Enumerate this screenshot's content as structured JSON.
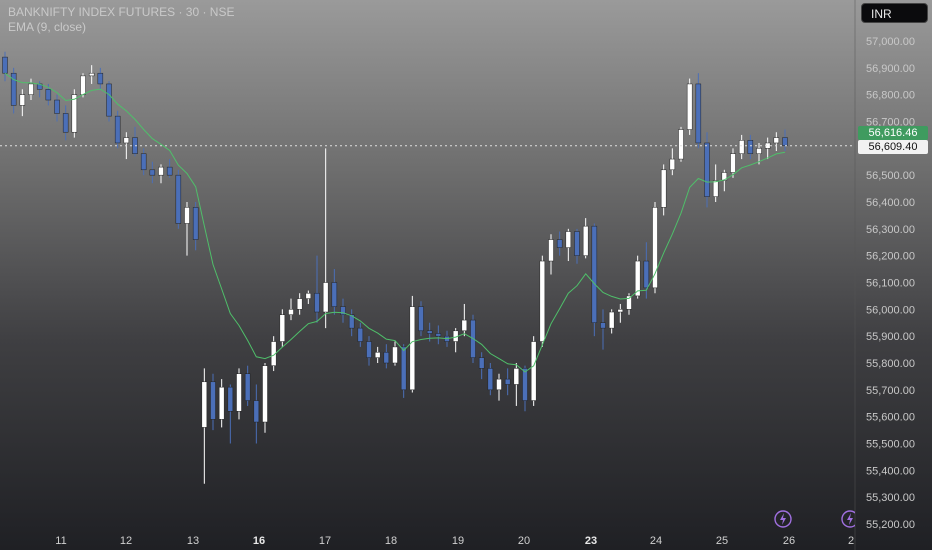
{
  "legend": {
    "symbol_line": "BANKNIFTY INDEX FUTURES · 30 · NSE",
    "indicator_line": "EMA (9, close)"
  },
  "currency_button": "INR",
  "price_tags": {
    "ema_value": "56,616.46",
    "last_price": "56,609.40"
  },
  "colors": {
    "ema_line": "#4fbf6a",
    "bull_candle": "#ffffff",
    "bear_candle": "#4b6fb8",
    "ema_tag_bg": "#3f9b5f"
  },
  "chart_data": {
    "type": "candlestick",
    "title": "BANKNIFTY INDEX FUTURES · 30 · NSE",
    "indicator": "EMA (9, close)",
    "y_ticks": [
      "57,000.00",
      "56,900.00",
      "56,800.00",
      "56,700.00",
      "56,600.00",
      "56,500.00",
      "56,400.00",
      "56,300.00",
      "56,200.00",
      "56,100.00",
      "56,000.00",
      "55,900.00",
      "55,800.00",
      "55,700.00",
      "55,600.00",
      "55,500.00",
      "55,400.00",
      "55,300.00",
      "55,200.00"
    ],
    "ylim": [
      55200,
      57000
    ],
    "x_ticks": [
      {
        "label": "11",
        "bold": false
      },
      {
        "label": "12",
        "bold": false
      },
      {
        "label": "13",
        "bold": false
      },
      {
        "label": "16",
        "bold": true
      },
      {
        "label": "17",
        "bold": false
      },
      {
        "label": "18",
        "bold": false
      },
      {
        "label": "19",
        "bold": false
      },
      {
        "label": "20",
        "bold": false
      },
      {
        "label": "23",
        "bold": true
      },
      {
        "label": "24",
        "bold": false
      },
      {
        "label": "25",
        "bold": false
      },
      {
        "label": "26",
        "bold": false
      },
      {
        "label": "2",
        "bold": false
      }
    ],
    "last_price": 56609.4,
    "ema_last": 56616.46,
    "candles": [
      [
        56940,
        56960,
        56850,
        56880
      ],
      [
        56880,
        56900,
        56730,
        56760
      ],
      [
        56760,
        56820,
        56720,
        56800
      ],
      [
        56800,
        56860,
        56780,
        56840
      ],
      [
        56840,
        56850,
        56790,
        56820
      ],
      [
        56820,
        56840,
        56760,
        56780
      ],
      [
        56780,
        56800,
        56700,
        56730
      ],
      [
        56730,
        56760,
        56630,
        56660
      ],
      [
        56660,
        56820,
        56640,
        56800
      ],
      [
        56800,
        56880,
        56790,
        56870
      ],
      [
        56870,
        56910,
        56840,
        56880
      ],
      [
        56880,
        56900,
        56820,
        56840
      ],
      [
        56840,
        56850,
        56700,
        56720
      ],
      [
        56720,
        56740,
        56600,
        56620
      ],
      [
        56620,
        56660,
        56560,
        56640
      ],
      [
        56640,
        56680,
        56570,
        56580
      ],
      [
        56580,
        56600,
        56500,
        56520
      ],
      [
        56520,
        56550,
        56470,
        56500
      ],
      [
        56500,
        56540,
        56470,
        56530
      ],
      [
        56530,
        56560,
        56490,
        56500
      ],
      [
        56500,
        56520,
        56300,
        56320
      ],
      [
        56320,
        56400,
        56200,
        56380
      ],
      [
        56380,
        56400,
        56220,
        56260
      ],
      [
        55560,
        55780,
        55350,
        55730
      ],
      [
        55730,
        55760,
        55550,
        55590
      ],
      [
        55590,
        55740,
        55560,
        55710
      ],
      [
        55710,
        55720,
        55500,
        55620
      ],
      [
        55620,
        55780,
        55590,
        55760
      ],
      [
        55760,
        55790,
        55640,
        55660
      ],
      [
        55660,
        55720,
        55500,
        55580
      ],
      [
        55580,
        55800,
        55540,
        55790
      ],
      [
        55790,
        55900,
        55770,
        55880
      ],
      [
        55880,
        56000,
        55860,
        55980
      ],
      [
        55980,
        56040,
        55960,
        56000
      ],
      [
        56000,
        56060,
        55980,
        56040
      ],
      [
        56040,
        56070,
        56020,
        56060
      ],
      [
        56060,
        56200,
        55950,
        55990
      ],
      [
        55990,
        56600,
        55930,
        56100
      ],
      [
        56100,
        56150,
        55980,
        56010
      ],
      [
        56010,
        56040,
        55950,
        55980
      ],
      [
        55980,
        56000,
        55900,
        55930
      ],
      [
        55930,
        55950,
        55860,
        55880
      ],
      [
        55880,
        55900,
        55790,
        55820
      ],
      [
        55820,
        55860,
        55800,
        55840
      ],
      [
        55840,
        55870,
        55780,
        55800
      ],
      [
        55800,
        55880,
        55790,
        55860
      ],
      [
        55860,
        55870,
        55670,
        55700
      ],
      [
        55700,
        56050,
        55690,
        56010
      ],
      [
        56010,
        56030,
        55900,
        55920
      ],
      [
        55920,
        55950,
        55880,
        55910
      ],
      [
        55910,
        55940,
        55870,
        55900
      ],
      [
        55900,
        55920,
        55860,
        55880
      ],
      [
        55880,
        55930,
        55840,
        55920
      ],
      [
        55920,
        56020,
        55900,
        55960
      ],
      [
        55960,
        55980,
        55800,
        55820
      ],
      [
        55820,
        55840,
        55740,
        55780
      ],
      [
        55780,
        55800,
        55680,
        55700
      ],
      [
        55700,
        55760,
        55660,
        55740
      ],
      [
        55740,
        55780,
        55680,
        55720
      ],
      [
        55720,
        55800,
        55640,
        55780
      ],
      [
        55780,
        55790,
        55620,
        55660
      ],
      [
        55660,
        55900,
        55640,
        55880
      ],
      [
        55880,
        56200,
        55860,
        56180
      ],
      [
        56180,
        56280,
        56130,
        56260
      ],
      [
        56260,
        56290,
        56200,
        56230
      ],
      [
        56230,
        56300,
        56180,
        56290
      ],
      [
        56290,
        56300,
        56170,
        56200
      ],
      [
        56200,
        56340,
        56190,
        56310
      ],
      [
        56310,
        56320,
        55900,
        55950
      ],
      [
        55950,
        56000,
        55850,
        55930
      ],
      [
        55930,
        56000,
        55910,
        55990
      ],
      [
        55990,
        56020,
        55950,
        56000
      ],
      [
        56000,
        56060,
        55980,
        56050
      ],
      [
        56050,
        56200,
        56040,
        56180
      ],
      [
        56180,
        56250,
        56040,
        56080
      ],
      [
        56080,
        56400,
        56060,
        56380
      ],
      [
        56380,
        56540,
        56350,
        56520
      ],
      [
        56520,
        56600,
        56500,
        56560
      ],
      [
        56560,
        56680,
        56550,
        56670
      ],
      [
        56670,
        56860,
        56650,
        56840
      ],
      [
        56840,
        56880,
        56600,
        56620
      ],
      [
        56620,
        56660,
        56380,
        56420
      ],
      [
        56420,
        56540,
        56400,
        56480
      ],
      [
        56480,
        56520,
        56440,
        56510
      ],
      [
        56510,
        56600,
        56490,
        56580
      ],
      [
        56580,
        56650,
        56560,
        56630
      ],
      [
        56630,
        56650,
        56560,
        56580
      ],
      [
        56580,
        56620,
        56540,
        56600
      ],
      [
        56600,
        56640,
        56560,
        56620
      ],
      [
        56620,
        56660,
        56590,
        56640
      ],
      [
        56640,
        56670,
        56590,
        56610
      ]
    ]
  }
}
